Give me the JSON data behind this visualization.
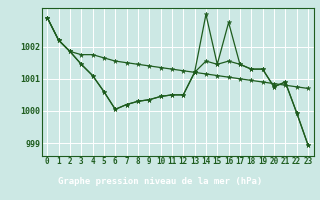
{
  "title": "Graphe pression niveau de la mer (hPa)",
  "plot_bg_color": "#cce8e4",
  "fig_bg_color": "#cce8e4",
  "footer_bg_color": "#5a9a6a",
  "line_color": "#1e5c1e",
  "grid_color": "#ffffff",
  "xlim": [
    -0.5,
    23.5
  ],
  "ylim": [
    998.6,
    1003.2
  ],
  "yticks": [
    999,
    1000,
    1001,
    1002
  ],
  "xticks": [
    0,
    1,
    2,
    3,
    4,
    5,
    6,
    7,
    8,
    9,
    10,
    11,
    12,
    13,
    14,
    15,
    16,
    17,
    18,
    19,
    20,
    21,
    22,
    23
  ],
  "series1_x": [
    0,
    1,
    2,
    3,
    4,
    5,
    6,
    7,
    8,
    9,
    10,
    11,
    12,
    13,
    14,
    15,
    16,
    17,
    18,
    19,
    20,
    21,
    22,
    23
  ],
  "series1_y": [
    1002.9,
    1002.2,
    1001.85,
    1001.75,
    1001.75,
    1001.65,
    1001.55,
    1001.5,
    1001.45,
    1001.4,
    1001.35,
    1001.3,
    1001.25,
    1001.2,
    1001.15,
    1001.1,
    1001.05,
    1001.0,
    1000.95,
    1000.9,
    1000.85,
    1000.8,
    1000.75,
    1000.7
  ],
  "series2_x": [
    0,
    1,
    2,
    3,
    4,
    5,
    6,
    7,
    8,
    9,
    10,
    11,
    12,
    13,
    14,
    15,
    16,
    17,
    18,
    19,
    20,
    21,
    22,
    23
  ],
  "series2_y": [
    1002.9,
    1002.2,
    1001.85,
    1001.45,
    1001.1,
    1000.6,
    1000.05,
    1000.2,
    1000.3,
    1000.35,
    1000.45,
    1000.5,
    1000.5,
    1001.2,
    1001.55,
    1001.45,
    1001.55,
    1001.45,
    1001.3,
    1001.3,
    1000.75,
    1000.9,
    999.95,
    998.95
  ],
  "series3_x": [
    0,
    1,
    2,
    3,
    4,
    5,
    6,
    7,
    8,
    9,
    10,
    11,
    12,
    13,
    14,
    15,
    16,
    17,
    18,
    19,
    20,
    21,
    22,
    23
  ],
  "series3_y": [
    1002.9,
    1002.2,
    1001.85,
    1001.45,
    1001.1,
    1000.6,
    1000.05,
    1000.2,
    1000.3,
    1000.35,
    1000.45,
    1000.5,
    1000.5,
    1001.2,
    1003.0,
    1001.45,
    1002.75,
    1001.45,
    1001.3,
    1001.3,
    1000.75,
    1000.9,
    999.95,
    998.95
  ],
  "tick_fontsize": 5.5,
  "title_fontsize": 6.5
}
